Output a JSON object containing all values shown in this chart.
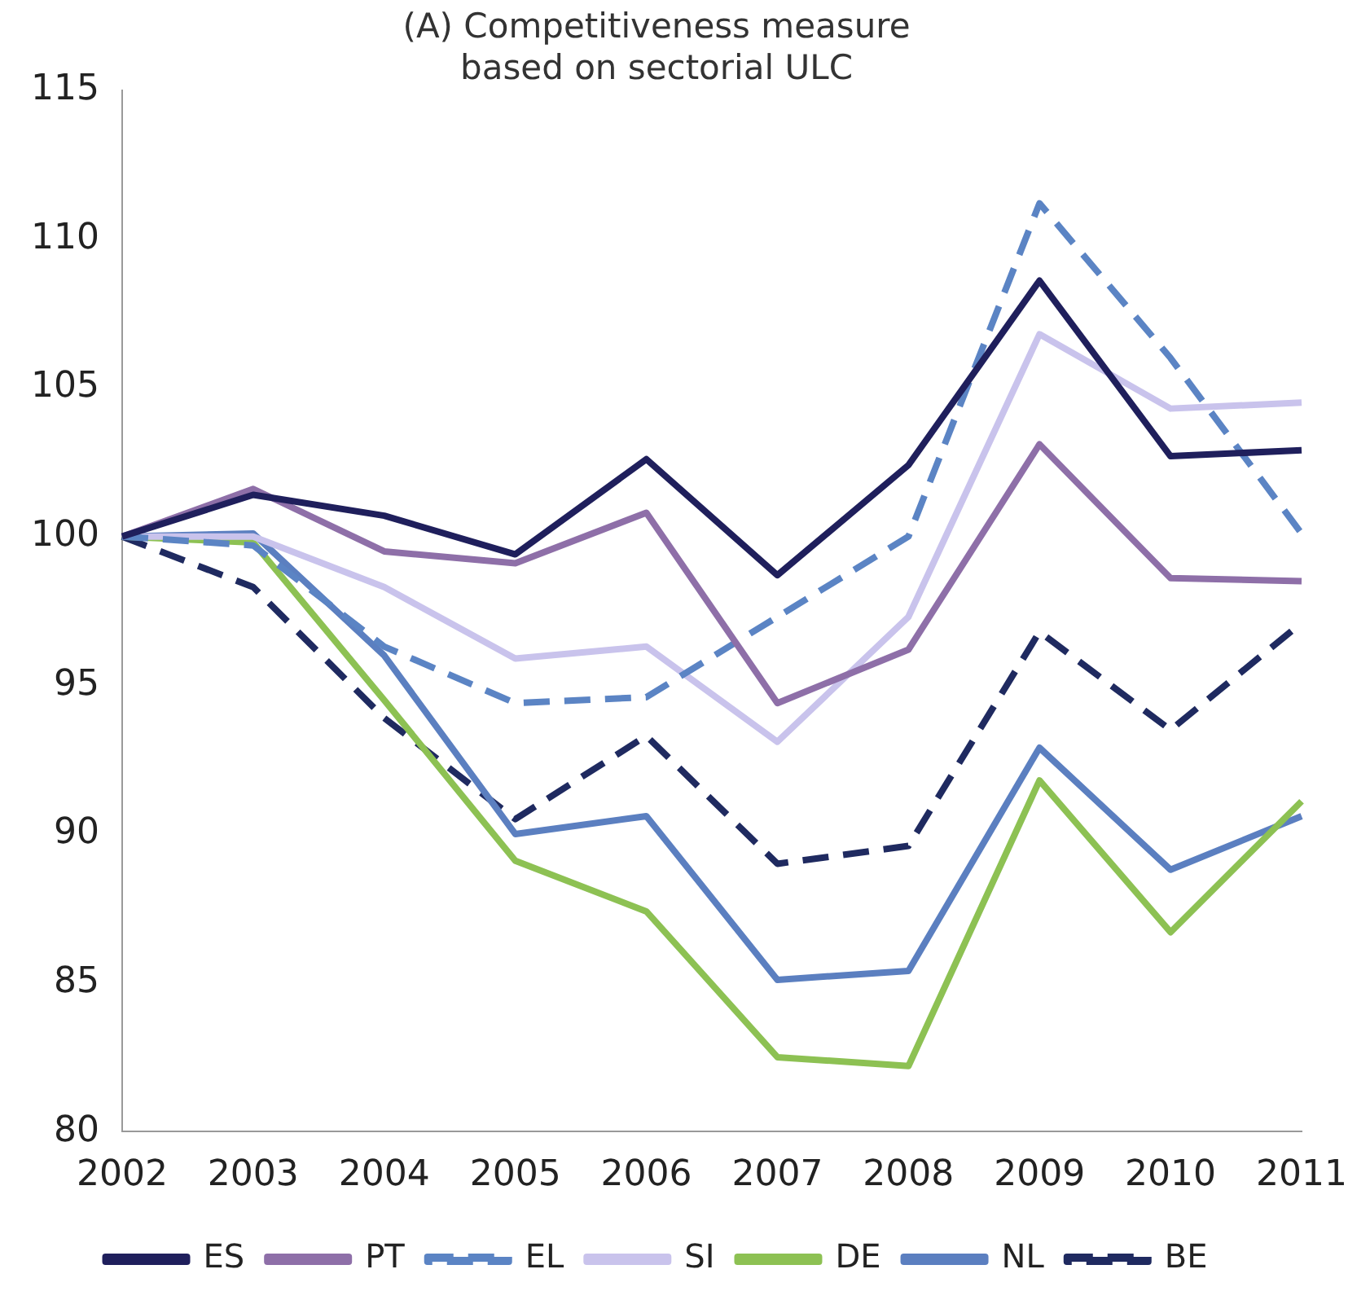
{
  "chart_data": {
    "type": "line",
    "title": "(A) Competitiveness measure\nbased on sectorial ULC",
    "categories": [
      "2002",
      "2003",
      "2004",
      "2005",
      "2006",
      "2007",
      "2008",
      "2009",
      "2010",
      "2011"
    ],
    "series": [
      {
        "name": "ES",
        "color": "#1f1f5c",
        "line_style": "solid",
        "values": [
          100,
          101.4,
          100.7,
          99.4,
          102.6,
          98.7,
          102.4,
          108.6,
          102.7,
          102.9
        ]
      },
      {
        "name": "PT",
        "color": "#8e6fa8",
        "line_style": "solid",
        "values": [
          100,
          101.6,
          99.5,
          99.1,
          100.8,
          94.4,
          96.2,
          103.1,
          98.6,
          98.5
        ]
      },
      {
        "name": "EL",
        "color": "#5b84c4",
        "line_style": "dashed",
        "values": [
          100,
          99.7,
          96.3,
          94.4,
          94.6,
          97.3,
          100.0,
          111.2,
          106.0,
          100.1
        ]
      },
      {
        "name": "SI",
        "color": "#c9c3ec",
        "line_style": "solid",
        "values": [
          100,
          100.0,
          98.3,
          95.9,
          96.3,
          93.1,
          97.3,
          106.8,
          104.3,
          104.5
        ]
      },
      {
        "name": "DE",
        "color": "#8dc153",
        "line_style": "solid",
        "values": [
          100,
          99.8,
          94.5,
          89.1,
          87.4,
          82.5,
          82.2,
          91.8,
          86.7,
          91.1
        ]
      },
      {
        "name": "NL",
        "color": "#5b7fc0",
        "line_style": "solid",
        "values": [
          100,
          100.1,
          96.0,
          90.0,
          90.6,
          85.1,
          85.4,
          92.9,
          88.8,
          90.6
        ]
      },
      {
        "name": "BE",
        "color": "#1f2a60",
        "line_style": "dashed",
        "values": [
          100,
          98.3,
          93.9,
          90.5,
          93.3,
          89.0,
          89.6,
          96.8,
          93.5,
          97.1
        ]
      }
    ],
    "ylim": [
      80,
      115
    ],
    "yticks": [
      80,
      85,
      90,
      95,
      100,
      105,
      110,
      115
    ],
    "grid": false,
    "legend": "bottom",
    "marker": "none"
  }
}
